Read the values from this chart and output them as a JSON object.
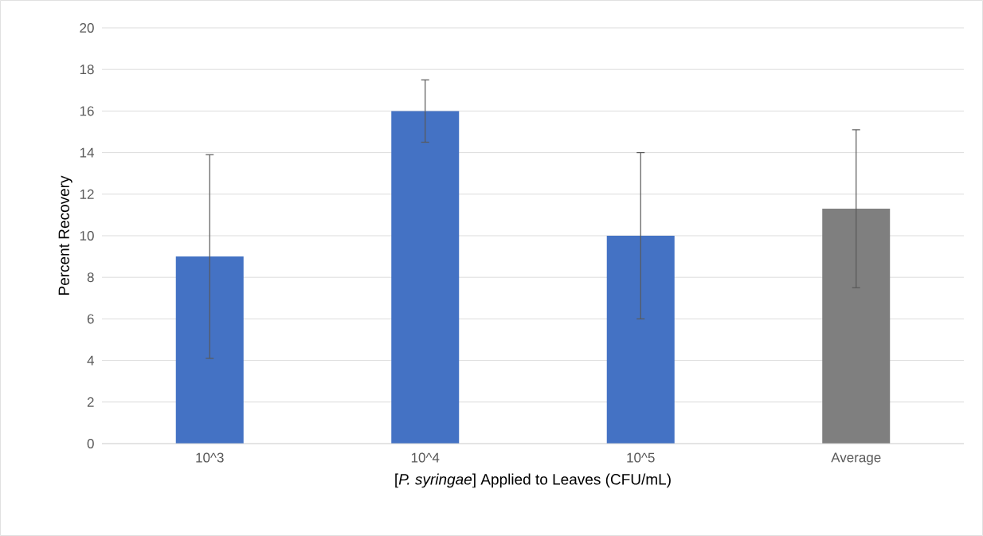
{
  "chart_data": {
    "type": "bar",
    "xlabel": "[*P. syringae*] Applied to Leaves (CFU/mL)",
    "ylabel": "Percent Recovery",
    "categories": [
      "10^3",
      "10^4",
      "10^5",
      "Average"
    ],
    "values": [
      9,
      16,
      10,
      11.3
    ],
    "colors": [
      "#4472c4",
      "#4472c4",
      "#4472c4",
      "#7f7f7f"
    ],
    "errors": [
      4.9,
      1.5,
      4,
      3.8
    ],
    "ylim": [
      0,
      20
    ],
    "yticks": [
      0,
      2,
      4,
      6,
      8,
      10,
      12,
      14,
      16,
      18,
      20
    ],
    "grid": "y"
  }
}
